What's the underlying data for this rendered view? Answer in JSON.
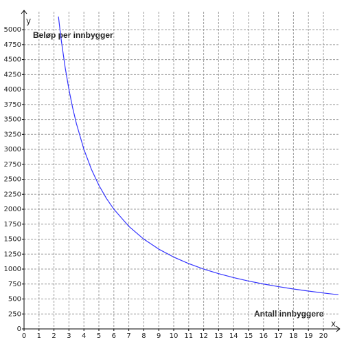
{
  "chart_data": {
    "type": "line",
    "x_label": "x",
    "y_label": "y",
    "annotations": [
      "Beløp per innbygger",
      "Antall innbyggere"
    ],
    "x": [
      2.3,
      2.4,
      2.5,
      2.75,
      3,
      3.25,
      3.5,
      4,
      4.5,
      5,
      5.5,
      6,
      7,
      8,
      9,
      10,
      11,
      12,
      13,
      14,
      15,
      16,
      17,
      18,
      19,
      20,
      21
    ],
    "series": [
      {
        "name": "f",
        "color": "#3333ff",
        "values": [
          5217,
          5000,
          4800,
          4364,
          4000,
          3692,
          3429,
          3000,
          2667,
          2400,
          2182,
          2000,
          1714,
          1500,
          1333,
          1200,
          1091,
          1000,
          923,
          857,
          800,
          750,
          706,
          667,
          632,
          600,
          571
        ]
      }
    ],
    "xlim": [
      0,
      21
    ],
    "ylim": [
      0,
      5300
    ],
    "xticks": [
      0,
      1,
      2,
      3,
      4,
      5,
      6,
      7,
      8,
      9,
      10,
      11,
      12,
      13,
      14,
      15,
      16,
      17,
      18,
      19,
      20
    ],
    "yticks": [
      0,
      250,
      500,
      750,
      1000,
      1250,
      1500,
      1750,
      2000,
      2250,
      2500,
      2750,
      3000,
      3250,
      3500,
      3750,
      4000,
      4250,
      4500,
      4750,
      5000
    ],
    "grid": true
  }
}
